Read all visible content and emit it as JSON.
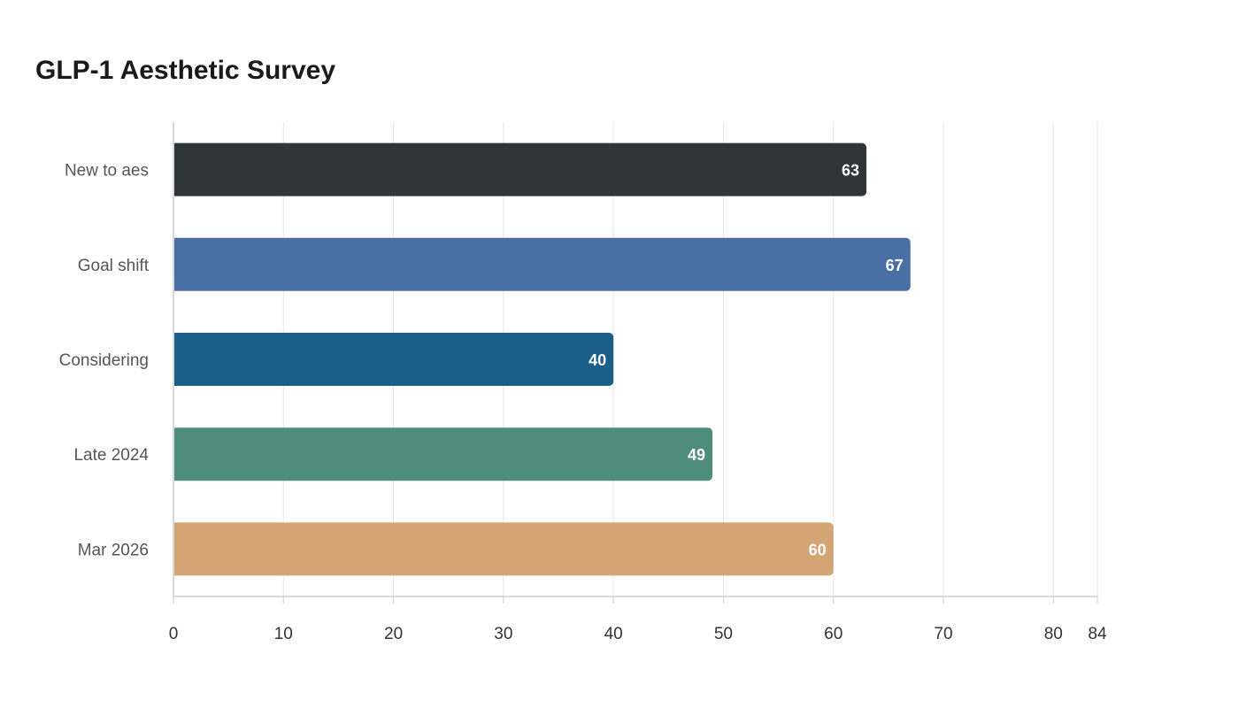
{
  "chart_data": {
    "type": "bar",
    "orientation": "horizontal",
    "title": "GLP-1 Aesthetic Survey",
    "xlabel": "",
    "ylabel": "",
    "categories": [
      "New to aes",
      "Goal shift",
      "Considering",
      "Late 2024",
      "Mar 2026"
    ],
    "values": [
      63,
      67,
      40,
      49,
      60
    ],
    "colors": [
      "#2e3638",
      "#4a6fa5",
      "#1a5f87",
      "#4e8c7b",
      "#d4a574"
    ],
    "xlim": [
      0,
      84
    ],
    "xticks": [
      0,
      10,
      20,
      30,
      40,
      50,
      60,
      70,
      80,
      84
    ],
    "grid": true,
    "legend": "none"
  }
}
